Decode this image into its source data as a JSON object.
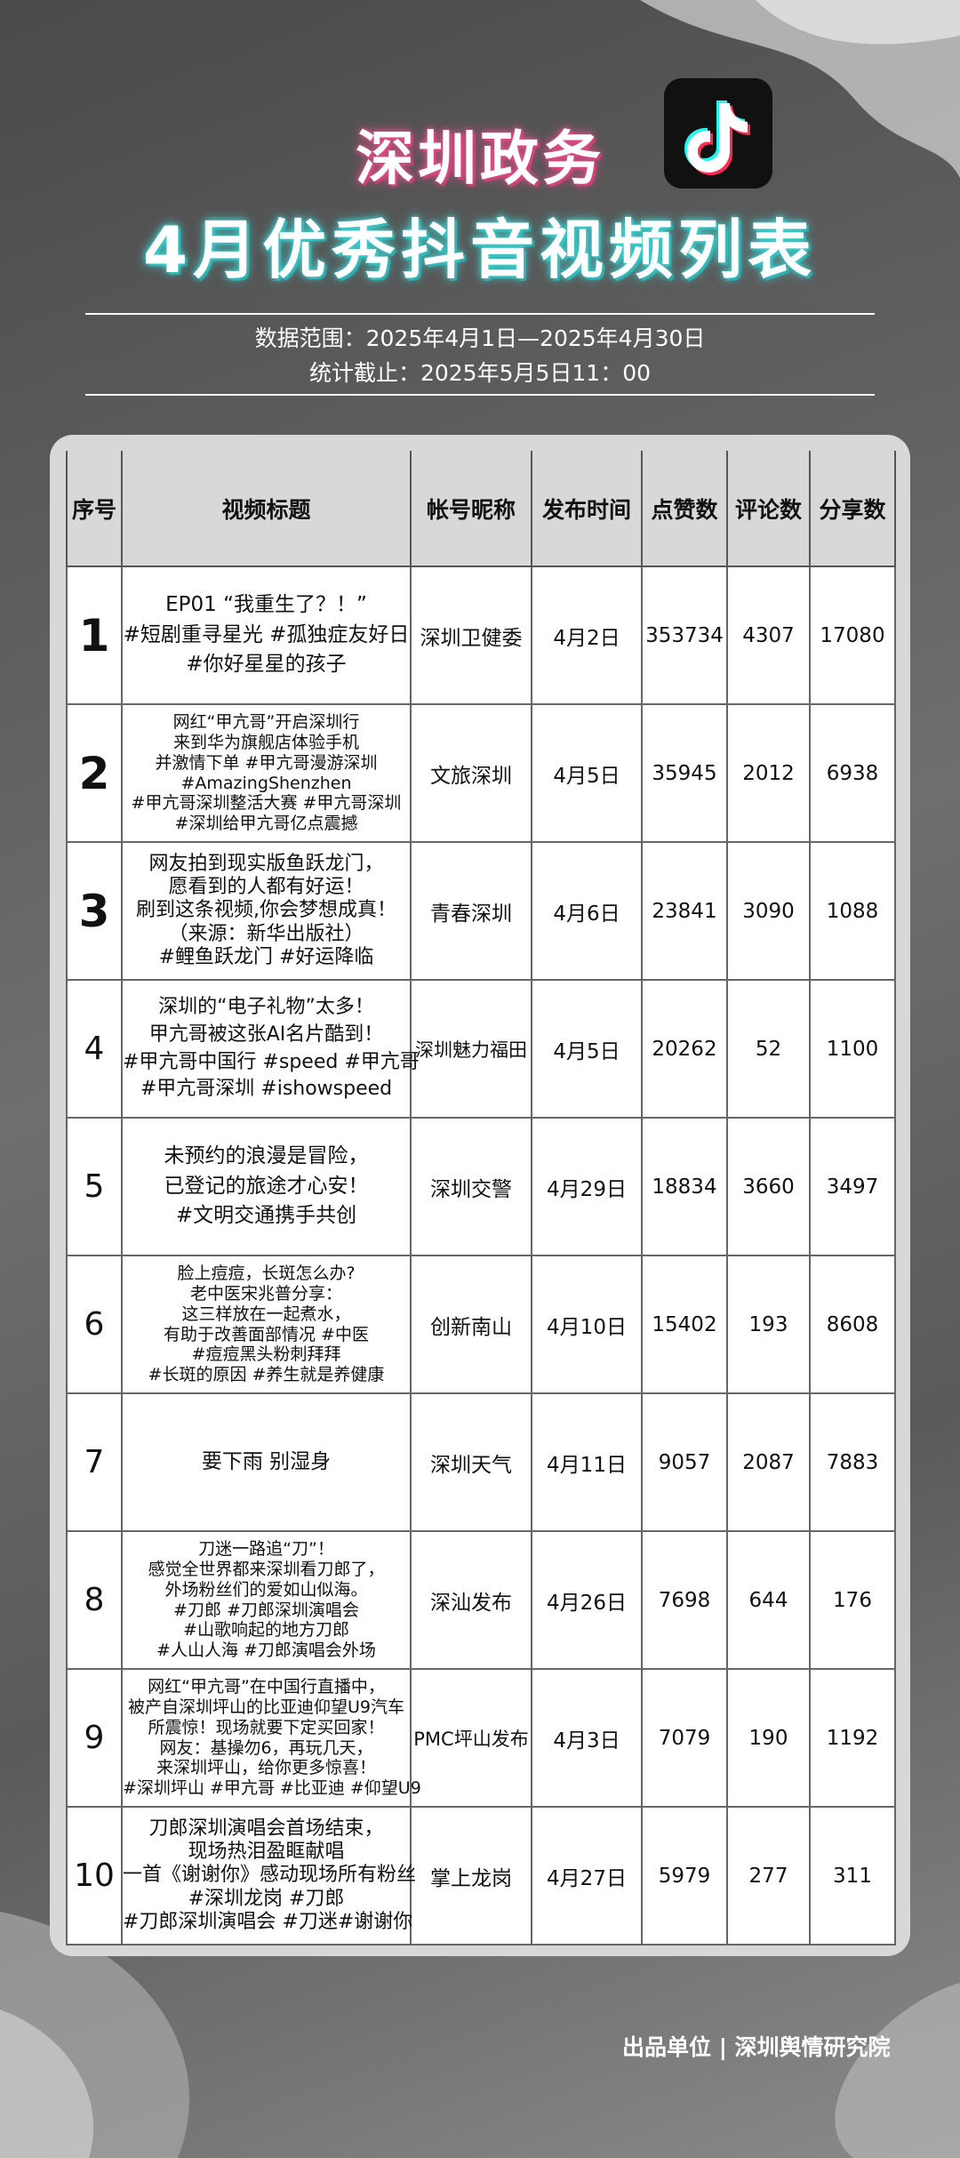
{
  "header": {
    "title_line1": "深圳政务",
    "title_line2": "4月优秀抖音视频列表",
    "data_range": "数据范围：2025年4月1日—2025年4月30日",
    "cutoff": "统计截止：2025年5月5日11：00"
  },
  "table": {
    "columns": [
      "序号",
      "视频标题",
      "帐号昵称",
      "发布时间",
      "点赞数",
      "评论数",
      "分享数"
    ],
    "rows": [
      {
        "rank": "1",
        "title": [
          "EP01 “我重生了？！”",
          "#短剧重寻星光 #孤独症友好日",
          "#你好星星的孩子"
        ],
        "account": "深圳卫健委",
        "date": "4月2日",
        "likes": "353734",
        "comments": "4307",
        "shares": "17080"
      },
      {
        "rank": "2",
        "title": [
          "网红“甲亢哥”开启深圳行",
          "来到华为旗舰店体验手机",
          "并激情下单 #甲亢哥漫游深圳",
          "#AmazingShenzhen",
          "#甲亢哥深圳整活大赛 #甲亢哥深圳",
          "#深圳给甲亢哥亿点震撼"
        ],
        "account": "文旅深圳",
        "date": "4月5日",
        "likes": "35945",
        "comments": "2012",
        "shares": "6938"
      },
      {
        "rank": "3",
        "title": [
          "网友拍到现实版鱼跃龙门，",
          "愿看到的人都有好运！",
          "刷到这条视频,你会梦想成真！",
          "（来源：新华出版社）",
          "#鲤鱼跃龙门 #好运降临"
        ],
        "account": "青春深圳",
        "date": "4月6日",
        "likes": "23841",
        "comments": "3090",
        "shares": "1088"
      },
      {
        "rank": "4",
        "title": [
          "深圳的“电子礼物”太多！",
          "甲亢哥被这张AI名片酷到！",
          "#甲亢哥中国行 #speed #甲亢哥",
          "#甲亢哥深圳 #ishowspeed"
        ],
        "account": "深圳魅力福田",
        "date": "4月5日",
        "likes": "20262",
        "comments": "52",
        "shares": "1100"
      },
      {
        "rank": "5",
        "title": [
          "未预约的浪漫是冒险，",
          "已登记的旅途才心安！",
          "#文明交通携手共创"
        ],
        "account": "深圳交警",
        "date": "4月29日",
        "likes": "18834",
        "comments": "3660",
        "shares": "3497"
      },
      {
        "rank": "6",
        "title": [
          "脸上痘痘，长斑怎么办?",
          "老中医宋兆普分享：",
          "这三样放在一起煮水，",
          "有助于改善面部情况 #中医",
          "#痘痘黑头粉刺拜拜",
          "#长斑的原因 #养生就是养健康"
        ],
        "account": "创新南山",
        "date": "4月10日",
        "likes": "15402",
        "comments": "193",
        "shares": "8608"
      },
      {
        "rank": "7",
        "title": [
          "要下雨 别湿身"
        ],
        "account": "深圳天气",
        "date": "4月11日",
        "likes": "9057",
        "comments": "2087",
        "shares": "7883"
      },
      {
        "rank": "8",
        "title": [
          "刀迷一路追“刀”！",
          "感觉全世界都来深圳看刀郎了，",
          "外场粉丝们的爱如山似海。",
          "#刀郎 #刀郎深圳演唱会",
          "#山歌响起的地方刀郎",
          "#人山人海 #刀郎演唱会外场"
        ],
        "account": "深汕发布",
        "date": "4月26日",
        "likes": "7698",
        "comments": "644",
        "shares": "176"
      },
      {
        "rank": "9",
        "title": [
          "网红“甲亢哥”在中国行直播中，",
          "被产自深圳坪山的比亚迪仰望U9汽车",
          "所震惊！现场就要下定买回家！",
          "网友：基操勿6，再玩几天，",
          "来深圳坪山，给你更多惊喜！",
          "#深圳坪山 #甲亢哥 #比亚迪 #仰望U9"
        ],
        "account": "PMC坪山发布",
        "date": "4月3日",
        "likes": "7079",
        "comments": "190",
        "shares": "1192"
      },
      {
        "rank": "10",
        "title": [
          "刀郎深圳演唱会首场结束，",
          "现场热泪盈眶献唱",
          "一首《谢谢你》感动现场所有粉丝",
          "#深圳龙岗 #刀郎",
          "#刀郎深圳演唱会 #刀迷#谢谢你"
        ],
        "account": "掌上龙岗",
        "date": "4月27日",
        "likes": "5979",
        "comments": "277",
        "shares": "311"
      }
    ]
  },
  "footer": {
    "credit": "出品单位 | 深圳舆情研究院"
  }
}
